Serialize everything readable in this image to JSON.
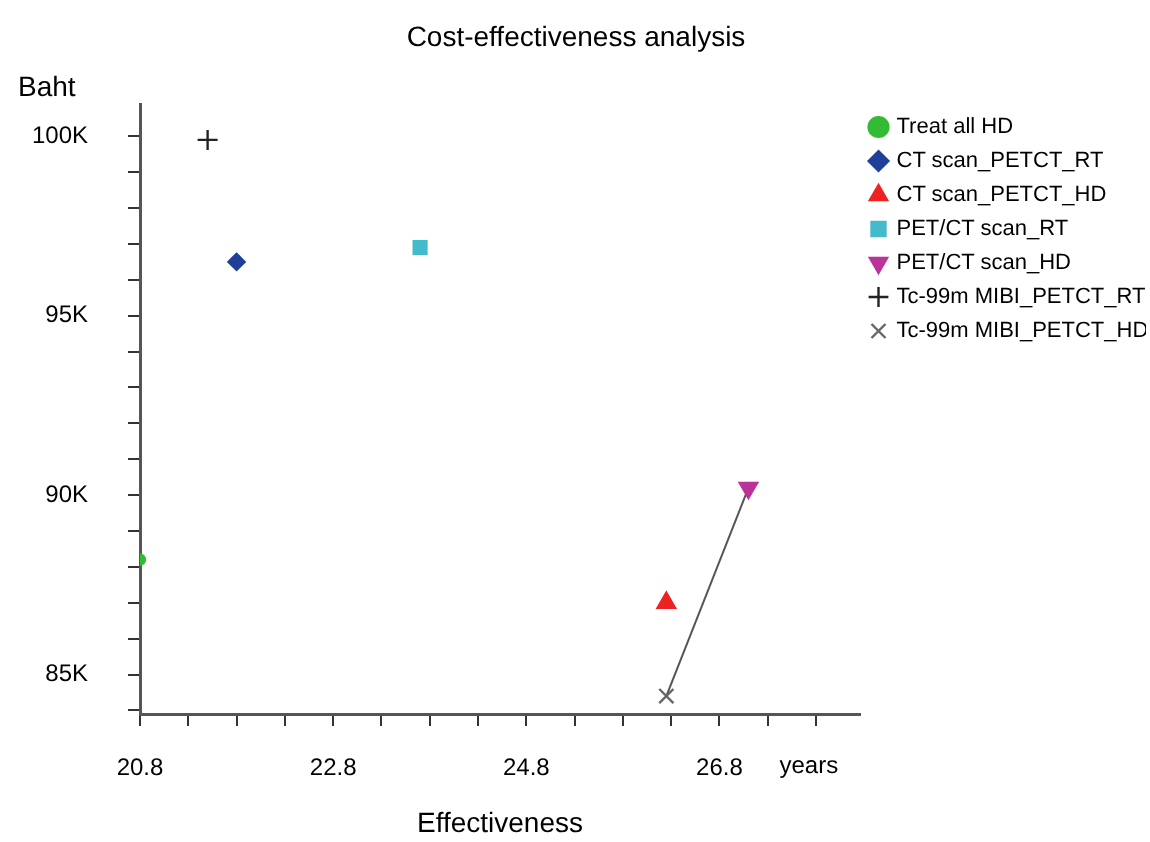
{
  "chart_data": {
    "type": "scatter",
    "title": "Cost-effectiveness analysis",
    "xlabel": "Effectiveness",
    "ylabel": "Baht",
    "annotations": [
      "years"
    ],
    "xlim": [
      20.8,
      28.25
    ],
    "ylim": [
      83900,
      100900
    ],
    "xticks": [
      20.8,
      {
        "value": 21.3,
        "label": null
      },
      {
        "value": 21.8,
        "label": null
      },
      {
        "value": 22.3,
        "label": null
      },
      22.8,
      {
        "value": 23.3,
        "label": null
      },
      {
        "value": 23.8,
        "label": null
      },
      {
        "value": 24.3,
        "label": null
      },
      24.8,
      {
        "value": 25.3,
        "label": null
      },
      {
        "value": 25.8,
        "label": null
      },
      {
        "value": 26.3,
        "label": null
      },
      26.8,
      {
        "value": 27.3,
        "label": null
      },
      {
        "value": 27.8,
        "label": null
      }
    ],
    "yticks": [
      {
        "value": 84000,
        "label": null
      },
      {
        "value": 85000,
        "label": "85K"
      },
      {
        "value": 86000,
        "label": null
      },
      {
        "value": 87000,
        "label": null
      },
      {
        "value": 88000,
        "label": null
      },
      {
        "value": 89000,
        "label": null
      },
      {
        "value": 90000,
        "label": "90K"
      },
      {
        "value": 91000,
        "label": null
      },
      {
        "value": 92000,
        "label": null
      },
      {
        "value": 93000,
        "label": null
      },
      {
        "value": 94000,
        "label": null
      },
      {
        "value": 95000,
        "label": "95K"
      },
      {
        "value": 96000,
        "label": null
      },
      {
        "value": 97000,
        "label": null
      },
      {
        "value": 98000,
        "label": null
      },
      {
        "value": 99000,
        "label": null
      },
      {
        "value": 100000,
        "label": "100K"
      }
    ],
    "grid": false,
    "legend": "top right",
    "series": [
      {
        "name": "Treat all HD",
        "color": "#33bb33",
        "marker": "circle",
        "x": [
          20.8
        ],
        "values": [
          88200
        ]
      },
      {
        "name": "CT scan_PETCT_RT",
        "color": "#1f3f99",
        "marker": "diamond",
        "x": [
          21.8
        ],
        "values": [
          96500
        ]
      },
      {
        "name": "CT scan_PETCT_HD",
        "color": "#ee2222",
        "marker": "triangle",
        "x": [
          26.25
        ],
        "values": [
          87000
        ]
      },
      {
        "name": "PET/CT scan_RT",
        "color": "#44bbcc",
        "marker": "square",
        "x": [
          23.7
        ],
        "values": [
          96900
        ]
      },
      {
        "name": "PET/CT scan_HD",
        "color": "#bb3399",
        "marker": "triangle-down",
        "x": [
          27.1
        ],
        "values": [
          90200
        ]
      },
      {
        "name": "Tc-99m MIBI_PETCT_RT",
        "color": "#222222",
        "marker": "cross",
        "x": [
          21.5
        ],
        "values": [
          99900
        ]
      },
      {
        "name": "Tc-99m MIBI_PETCT_HD",
        "color": "#666666",
        "marker": "x",
        "x": [
          26.25
        ],
        "values": [
          84400
        ]
      },
      {
        "type": "line",
        "color": "#555555",
        "marker": "none",
        "x": [
          26.25,
          27.1
        ],
        "values": [
          84400,
          90200
        ]
      }
    ]
  }
}
